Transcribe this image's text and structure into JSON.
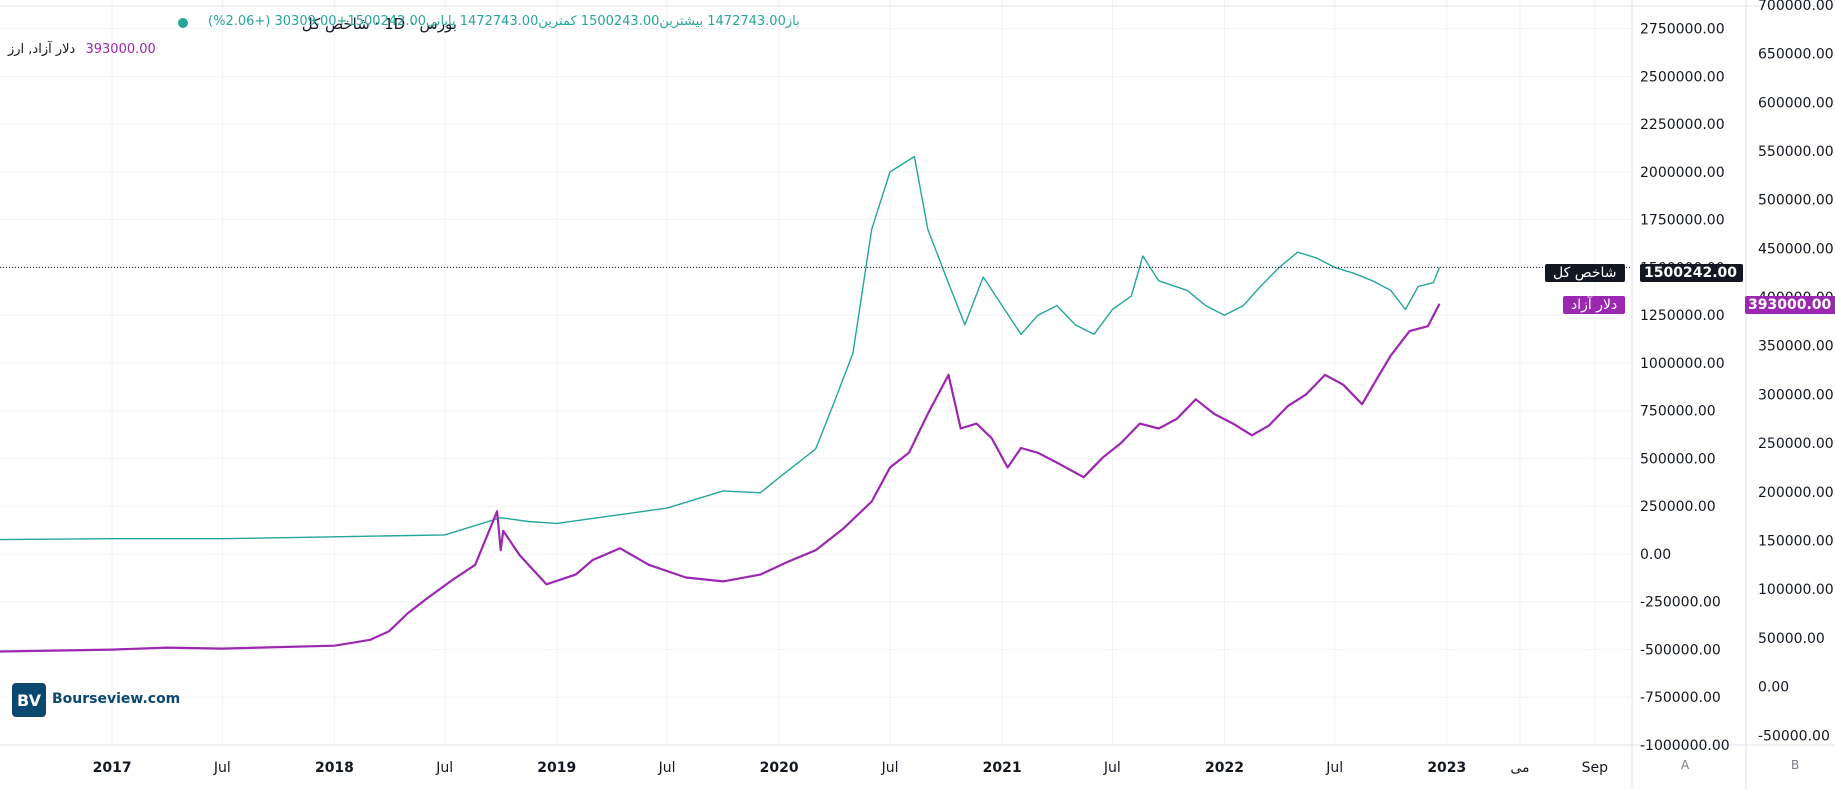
{
  "header": {
    "dot_color": "#26a69a",
    "symbol_line": "بورس · 1D · شاخص کل",
    "ohlc_line": "باز1472743.00  بیشترین1500243.00  کمترین1472743.00  پایانی1500242.00+30309.00 (+2.06%)",
    "secondary_line": "دلار آزاد, ارز",
    "secondary_value": "393000.00"
  },
  "badges": {
    "index_name": "شاخص کل",
    "index_value": "1500242.00",
    "dollar_name": "دلار آزاد",
    "dollar_value": "393000.00"
  },
  "axis_footer": {
    "left": "A",
    "right": "B"
  },
  "logo": {
    "mark": "BV",
    "text": "Bourseview.com"
  },
  "chart_data": [
    {
      "type": "line",
      "series_label": "شاخص کل",
      "y_axis": "primary",
      "ylim": [
        -1000000,
        2900000
      ],
      "yticks": [
        2750000,
        2500000,
        2250000,
        2000000,
        1750000,
        1500000,
        1250000,
        1000000,
        750000,
        500000,
        250000,
        0,
        -250000,
        -500000,
        -750000,
        -1000000
      ],
      "ytick_labels": [
        "2750000.00",
        "2500000.00",
        "2250000.00",
        "2000000.00",
        "1750000.00",
        "1500000.00",
        "1250000.00",
        "1000000.00",
        "750000.00",
        "500000.00",
        "250000.00",
        "0.00",
        "-250000.00",
        "-500000.00",
        "-750000.00",
        "-1000000.00"
      ],
      "color": "#26a69a",
      "last_value": 1500242,
      "points": [
        [
          "2016-07-01",
          75000
        ],
        [
          "2017-01-01",
          80000
        ],
        [
          "2017-07-01",
          80000
        ],
        [
          "2018-01-01",
          90000
        ],
        [
          "2018-07-01",
          100000
        ],
        [
          "2018-10-01",
          190000
        ],
        [
          "2018-11-15",
          170000
        ],
        [
          "2019-01-01",
          160000
        ],
        [
          "2019-04-01",
          200000
        ],
        [
          "2019-07-01",
          240000
        ],
        [
          "2019-10-01",
          330000
        ],
        [
          "2019-12-01",
          320000
        ],
        [
          "2020-01-01",
          400000
        ],
        [
          "2020-03-01",
          550000
        ],
        [
          "2020-04-01",
          800000
        ],
        [
          "2020-05-01",
          1050000
        ],
        [
          "2020-06-01",
          1700000
        ],
        [
          "2020-07-01",
          2000000
        ],
        [
          "2020-08-10",
          2080000
        ],
        [
          "2020-09-01",
          1700000
        ],
        [
          "2020-10-01",
          1450000
        ],
        [
          "2020-11-01",
          1200000
        ],
        [
          "2020-12-01",
          1450000
        ],
        [
          "2021-01-01",
          1300000
        ],
        [
          "2021-02-01",
          1150000
        ],
        [
          "2021-03-01",
          1250000
        ],
        [
          "2021-04-01",
          1300000
        ],
        [
          "2021-05-01",
          1200000
        ],
        [
          "2021-06-01",
          1150000
        ],
        [
          "2021-07-01",
          1280000
        ],
        [
          "2021-08-01",
          1350000
        ],
        [
          "2021-08-20",
          1560000
        ],
        [
          "2021-09-15",
          1430000
        ],
        [
          "2021-11-01",
          1380000
        ],
        [
          "2021-12-01",
          1300000
        ],
        [
          "2022-01-01",
          1250000
        ],
        [
          "2022-02-01",
          1300000
        ],
        [
          "2022-03-01",
          1400000
        ],
        [
          "2022-04-01",
          1500000
        ],
        [
          "2022-05-01",
          1580000
        ],
        [
          "2022-06-01",
          1550000
        ],
        [
          "2022-07-01",
          1500000
        ],
        [
          "2022-08-01",
          1470000
        ],
        [
          "2022-09-01",
          1430000
        ],
        [
          "2022-10-01",
          1380000
        ],
        [
          "2022-10-25",
          1280000
        ],
        [
          "2022-11-15",
          1400000
        ],
        [
          "2022-12-10",
          1420000
        ],
        [
          "2022-12-20",
          1500242
        ]
      ]
    },
    {
      "type": "line",
      "series_label": "دلار آزاد",
      "y_axis": "secondary",
      "ylim": [
        -60000,
        705000
      ],
      "yticks": [
        700000,
        650000,
        600000,
        550000,
        500000,
        450000,
        400000,
        350000,
        300000,
        250000,
        200000,
        150000,
        100000,
        50000,
        0,
        -50000
      ],
      "ytick_labels": [
        "700000.00",
        "650000.00",
        "600000.00",
        "550000.00",
        "500000.00",
        "450000.00",
        "400000.00",
        "350000.00",
        "300000.00",
        "250000.00",
        "200000.00",
        "150000.00",
        "100000.00",
        "50000.00",
        "0.00",
        "-50000.00"
      ],
      "color": "#9c27b0",
      "last_value": 393000,
      "points": [
        [
          "2016-07-01",
          36000
        ],
        [
          "2017-01-01",
          38000
        ],
        [
          "2017-04-01",
          40000
        ],
        [
          "2017-07-01",
          39000
        ],
        [
          "2018-01-01",
          42000
        ],
        [
          "2018-03-01",
          48000
        ],
        [
          "2018-04-01",
          57000
        ],
        [
          "2018-05-01",
          75000
        ],
        [
          "2018-06-01",
          90000
        ],
        [
          "2018-07-15",
          110000
        ],
        [
          "2018-08-20",
          125000
        ],
        [
          "2018-09-25",
          180000
        ],
        [
          "2018-10-01",
          140000
        ],
        [
          "2018-10-05",
          160000
        ],
        [
          "2018-11-01",
          135000
        ],
        [
          "2018-12-15",
          105000
        ],
        [
          "2019-02-01",
          115000
        ],
        [
          "2019-03-01",
          130000
        ],
        [
          "2019-04-15",
          142000
        ],
        [
          "2019-06-01",
          125000
        ],
        [
          "2019-08-01",
          112000
        ],
        [
          "2019-10-01",
          108000
        ],
        [
          "2019-12-01",
          115000
        ],
        [
          "2020-01-15",
          128000
        ],
        [
          "2020-03-01",
          140000
        ],
        [
          "2020-04-15",
          162000
        ],
        [
          "2020-06-01",
          190000
        ],
        [
          "2020-07-01",
          225000
        ],
        [
          "2020-08-01",
          240000
        ],
        [
          "2020-09-01",
          280000
        ],
        [
          "2020-10-05",
          320000
        ],
        [
          "2020-10-25",
          265000
        ],
        [
          "2020-11-20",
          270000
        ],
        [
          "2020-12-15",
          255000
        ],
        [
          "2021-01-10",
          225000
        ],
        [
          "2021-02-01",
          245000
        ],
        [
          "2021-03-01",
          240000
        ],
        [
          "2021-04-01",
          230000
        ],
        [
          "2021-05-15",
          215000
        ],
        [
          "2021-06-15",
          235000
        ],
        [
          "2021-07-15",
          250000
        ],
        [
          "2021-08-15",
          270000
        ],
        [
          "2021-09-15",
          265000
        ],
        [
          "2021-10-15",
          275000
        ],
        [
          "2021-11-15",
          295000
        ],
        [
          "2021-12-15",
          280000
        ],
        [
          "2022-01-15",
          270000
        ],
        [
          "2022-02-15",
          258000
        ],
        [
          "2022-03-15",
          268000
        ],
        [
          "2022-04-15",
          288000
        ],
        [
          "2022-05-15",
          300000
        ],
        [
          "2022-06-15",
          320000
        ],
        [
          "2022-07-15",
          310000
        ],
        [
          "2022-08-15",
          290000
        ],
        [
          "2022-09-10",
          318000
        ],
        [
          "2022-10-01",
          340000
        ],
        [
          "2022-11-01",
          365000
        ],
        [
          "2022-12-01",
          370000
        ],
        [
          "2022-12-20",
          393000
        ]
      ]
    }
  ],
  "x_axis": {
    "start": "2016-07-01",
    "end": "2023-11-01",
    "ticks": [
      [
        "2017-01-01",
        "2017",
        true
      ],
      [
        "2017-07-01",
        "Jul",
        false
      ],
      [
        "2018-01-01",
        "2018",
        true
      ],
      [
        "2018-07-01",
        "Jul",
        false
      ],
      [
        "2019-01-01",
        "2019",
        true
      ],
      [
        "2019-07-01",
        "Jul",
        false
      ],
      [
        "2020-01-01",
        "2020",
        true
      ],
      [
        "2020-07-01",
        "Jul",
        false
      ],
      [
        "2021-01-01",
        "2021",
        true
      ],
      [
        "2021-07-01",
        "Jul",
        false
      ],
      [
        "2022-01-01",
        "2022",
        true
      ],
      [
        "2022-07-01",
        "Jul",
        false
      ],
      [
        "2023-01-01",
        "2023",
        true
      ],
      [
        "2023-05-01",
        "می",
        false
      ],
      [
        "2023-09-01",
        "Sep",
        false
      ]
    ]
  },
  "grid": true
}
